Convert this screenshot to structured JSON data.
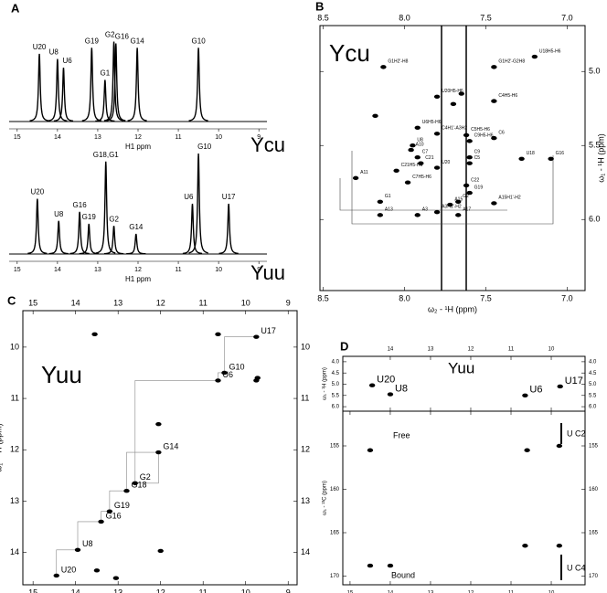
{
  "chart_data": [
    {
      "type": "spectrum",
      "panel": "A",
      "title": "Ycu",
      "x": [
        14.45,
        14.0,
        13.85,
        13.15,
        12.82,
        12.6,
        12.55,
        12.02,
        10.5
      ],
      "values": [
        0.78,
        0.72,
        0.62,
        0.85,
        0.48,
        0.92,
        0.9,
        0.85,
        0.85
      ],
      "categories": [
        "U20",
        "U8",
        "U6",
        "G19",
        "G1",
        "G2",
        "G16",
        "G14",
        "G10"
      ],
      "xlim": [
        15.2,
        8.8
      ],
      "xticks": [
        15,
        14,
        13,
        12,
        11,
        10,
        9
      ],
      "xlabel": "H1 ppm"
    },
    {
      "type": "spectrum",
      "title": "Yuu",
      "x": [
        14.5,
        13.97,
        13.45,
        13.22,
        12.8,
        12.6,
        12.05,
        10.65,
        10.5,
        9.75
      ],
      "values": [
        0.55,
        0.33,
        0.42,
        0.3,
        0.92,
        0.28,
        0.2,
        0.5,
        1.0,
        0.5
      ],
      "categories": [
        "U20",
        "U8",
        "G16",
        "G19",
        "G18,G1",
        "G2",
        "G14",
        "U6",
        "G10",
        "U17"
      ],
      "xlim": [
        15.2,
        8.8
      ],
      "xticks": [
        15,
        14,
        13,
        12,
        11,
        10,
        9
      ],
      "xlabel": "H1 ppm"
    },
    {
      "type": "scatter",
      "panel": "B",
      "title": "Ycu",
      "x": [
        7.2,
        8.13,
        7.45,
        7.8,
        7.45,
        7.92,
        7.8,
        7.62,
        7.6,
        7.45,
        7.95,
        7.96,
        7.92,
        7.9,
        8.05,
        7.6,
        7.6,
        7.28,
        7.1,
        8.3,
        7.98,
        7.6,
        8.15,
        7.67,
        7.72,
        7.67,
        8.15,
        7.92,
        7.8,
        7.45,
        7.8,
        7.62,
        8.18,
        7.65,
        7.7
      ],
      "y": [
        4.9,
        4.97,
        4.97,
        5.17,
        5.2,
        5.38,
        5.42,
        5.43,
        5.47,
        5.45,
        5.5,
        5.53,
        5.58,
        5.62,
        5.67,
        5.58,
        5.62,
        5.59,
        5.59,
        5.72,
        5.75,
        5.82,
        5.88,
        5.88,
        5.9,
        5.97,
        5.97,
        5.97,
        5.95,
        5.89,
        5.65,
        5.77,
        5.3,
        5.15,
        5.22
      ],
      "categories": [
        "U18H5-H6",
        "G1H2'-H8",
        "G1H2'-G2H8",
        "U20H5-H6",
        "C4H5-H6",
        "U6H5-H6",
        "C4H1'-A3H2",
        "C5H5-H6",
        "C9H5-H6",
        "C6",
        "U8",
        "A10",
        "C7",
        "C21",
        "C21H5-H6",
        "C9",
        "C5",
        "U18",
        "G16",
        "A11",
        "C7H5-H6",
        "G19",
        "G1",
        "G2",
        "A15",
        "A17",
        "A13",
        "A3",
        "A3H1'-H2",
        "A15H1'-H2",
        "U20",
        "C22",
        null,
        null,
        null
      ],
      "xlim": [
        8.52,
        6.89
      ],
      "ylim": [
        4.69,
        6.48
      ],
      "xticks": [
        8.5,
        {
          "value": 8.0,
          "label": "8.0"
        },
        7.5,
        {
          "value": 7.0,
          "label": "7.0"
        }
      ],
      "yticks": [
        {
          "value": 5.0,
          "label": "5.0"
        },
        5.5,
        {
          "value": 6.0,
          "label": "6.0"
        }
      ],
      "xlabel": "ω₂ - ¹H (ppm)",
      "ylabel": "ω₁ - ¹H (ppm)"
    },
    {
      "type": "scatter",
      "panel": "C",
      "title": "Yuu",
      "x": [
        9.75,
        10.5,
        10.65,
        12.6,
        12.05,
        12.8,
        13.2,
        13.4,
        13.95,
        14.45,
        13.55,
        10.65,
        9.75,
        9.72,
        12.0,
        13.5,
        12.05,
        13.05
      ],
      "y": [
        9.8,
        10.5,
        10.65,
        12.65,
        12.05,
        12.8,
        13.2,
        13.4,
        13.95,
        14.45,
        9.75,
        9.75,
        10.65,
        10.6,
        13.97,
        14.35,
        11.5,
        14.5
      ],
      "categories": [
        "U17",
        "G10",
        "U6",
        "G2",
        "G14",
        "G18",
        "G19",
        "G16",
        "U8",
        "U20",
        null,
        null,
        null,
        null,
        null,
        null,
        null,
        null
      ],
      "xlim": [
        15.24,
        8.79
      ],
      "ylim": [
        9.29,
        14.63
      ],
      "xticks": [
        15,
        14,
        13,
        12,
        11,
        10,
        9
      ],
      "yticks": [
        10,
        11,
        12,
        13,
        14
      ],
      "xlabel": "ω₂ - ¹H (ppm)",
      "ylabel": "ω₁ - ¹H (ppm)"
    },
    {
      "type": "scatter",
      "panel": "D",
      "title": "Yuu",
      "x": [
        14.45,
        14.0,
        10.65,
        9.78
      ],
      "y": [
        5.05,
        5.45,
        5.5,
        5.1
      ],
      "categories": [
        "U20",
        "U8",
        "U6",
        "U17"
      ],
      "xlim": [
        15.18,
        9.16
      ],
      "ylim": [
        3.76,
        6.2
      ],
      "xticks": [
        14,
        13,
        12,
        11,
        10
      ],
      "yticks": [
        {
          "value": 4.0,
          "label": "4.0"
        },
        4.5,
        {
          "value": 5.0,
          "label": "5.0"
        },
        5.5,
        {
          "value": 6.0,
          "label": "6.0"
        }
      ],
      "ylabel": "ω₁ - ¹H (ppm)"
    },
    {
      "type": "scatter",
      "x": [
        14.5,
        10.6,
        9.8,
        14.5,
        14.0,
        10.65,
        9.8
      ],
      "y": [
        155.5,
        155.5,
        155,
        168.8,
        168.8,
        166.5,
        166.5
      ],
      "xlim": [
        15.18,
        9.16
      ],
      "ylim": [
        151,
        171
      ],
      "xticks": [
        15,
        14,
        13,
        12,
        11,
        10
      ],
      "yticks": [
        155,
        160,
        165,
        170
      ],
      "xlabel": "ω₂ - ¹H (ppm)",
      "ylabel": "ω₁ - ¹³C (ppm)",
      "annotations": [
        "Free",
        "Bound",
        "U C2",
        "U C4"
      ]
    }
  ]
}
